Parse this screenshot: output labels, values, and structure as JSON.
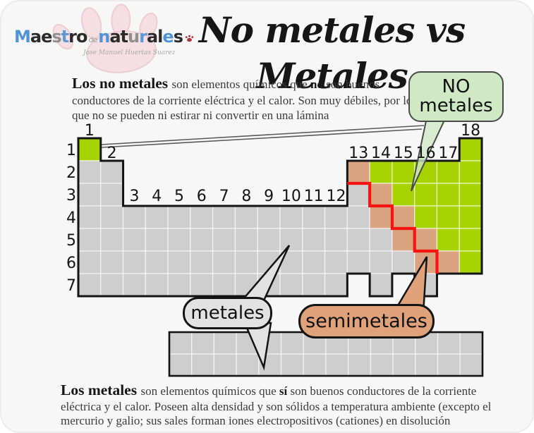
{
  "brand": {
    "name": "Maestro naturales",
    "name_primary": "Maestro",
    "name_connector": "de",
    "name_secondary": "naturales",
    "subtitle": "Jose Manuel Huertas Suarez",
    "letter_colors": [
      "#4f94d6",
      "#2b2b2b",
      "#2b2b2b",
      "#8f8f8f",
      "#5b9bd5",
      "#2b2b2b",
      "#2b2b2b"
    ],
    "paw_fill": "#f6dde0",
    "mini_paw_color": "#b23434"
  },
  "title": "No metales vs Metales",
  "intro_paragraph": {
    "segments": [
      {
        "text": "Los no metales ",
        "lead": true
      },
      {
        "text": "son elementos químicos que ",
        "bold": false
      },
      {
        "text": "no",
        "bold": true
      },
      {
        "text": " son buenos conductores de la corriente eléctrica y el calor. Son muy débiles, por lo que no se pueden ni estirar ni convertir en una lámina",
        "bold": false
      }
    ]
  },
  "footer_paragraph": {
    "segments": [
      {
        "text": "Los metales ",
        "lead": true
      },
      {
        "text": "son elementos químicos que ",
        "bold": false
      },
      {
        "text": "sí",
        "bold": true
      },
      {
        "text": " son buenos conductores de la corriente eléctrica y el calor. Poseen alta densidad y son sólidos a temperatura ambiente (excepto el mercurio y galio; sus sales forman iones electropositivos (cationes) en disolución",
        "bold": false
      }
    ]
  },
  "callouts": {
    "nonmetals": {
      "text": "NO\nmetales",
      "fill": "#cfe9c5",
      "border": "#4a4a4a"
    },
    "metals": {
      "text": "metales",
      "fill": "#e2e2e2",
      "border": "#141414"
    },
    "semimetals": {
      "text": "semimetales",
      "fill": "#dfa27b",
      "border": "#141414"
    }
  },
  "periodic_table": {
    "group_labels": [
      "1",
      "2",
      "3",
      "4",
      "5",
      "6",
      "7",
      "8",
      "9",
      "10",
      "11",
      "12",
      "13",
      "14",
      "15",
      "16",
      "17",
      "18"
    ],
    "period_labels": [
      "1",
      "2",
      "3",
      "4",
      "5",
      "6",
      "7"
    ],
    "colors": {
      "metal": "#cecece",
      "nonmetal": "#a8d303",
      "semimetal": "#dba480",
      "divider": "#f51414",
      "outline": "#141414",
      "grid": "rgba(255,255,255,0.6)",
      "pointer_line": "#5a5a5a"
    },
    "rows": [
      {
        "period": 1,
        "cols": [
          [
            1,
            1
          ],
          [
            18,
            18
          ]
        ]
      },
      {
        "period": 2,
        "cols": [
          [
            1,
            2
          ],
          [
            13,
            18
          ]
        ]
      },
      {
        "period": 3,
        "cols": [
          [
            1,
            2
          ],
          [
            13,
            18
          ]
        ]
      },
      {
        "period": 4,
        "cols": [
          [
            1,
            18
          ]
        ]
      },
      {
        "period": 5,
        "cols": [
          [
            1,
            18
          ]
        ]
      },
      {
        "period": 6,
        "cols": [
          [
            1,
            18
          ]
        ]
      },
      {
        "period": 7,
        "cols": [
          [
            1,
            12
          ],
          [
            14,
            14
          ],
          [
            16,
            16
          ]
        ]
      }
    ],
    "nonmetal_cells": [
      [
        1,
        1
      ],
      [
        1,
        18
      ],
      [
        2,
        14
      ],
      [
        2,
        15
      ],
      [
        2,
        16
      ],
      [
        2,
        17
      ],
      [
        2,
        18
      ],
      [
        3,
        15
      ],
      [
        3,
        16
      ],
      [
        3,
        17
      ],
      [
        3,
        18
      ],
      [
        4,
        16
      ],
      [
        4,
        17
      ],
      [
        4,
        18
      ],
      [
        5,
        17
      ],
      [
        5,
        18
      ],
      [
        6,
        18
      ]
    ],
    "semimetal_cells": [
      [
        2,
        13
      ],
      [
        3,
        14
      ],
      [
        4,
        14
      ],
      [
        4,
        15
      ],
      [
        5,
        15
      ],
      [
        5,
        16
      ],
      [
        6,
        16
      ],
      [
        6,
        17
      ]
    ],
    "fblock": {
      "columns": 14,
      "rows": 2
    }
  }
}
